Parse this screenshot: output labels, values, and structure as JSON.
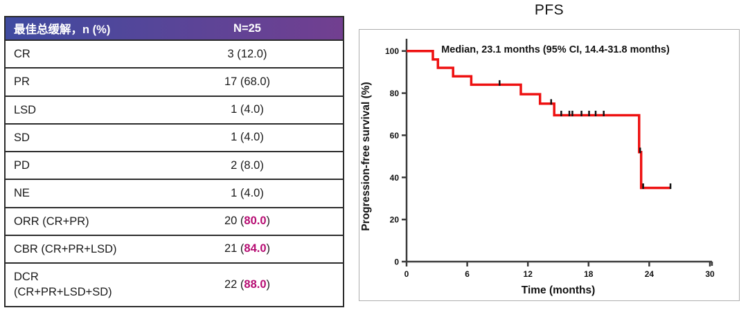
{
  "table": {
    "header": {
      "label": "最佳总缓解，n (%)",
      "value": "N=25"
    },
    "rows": [
      {
        "label": "CR",
        "n": "3",
        "pct": "12.0",
        "highlight": false
      },
      {
        "label": "PR",
        "n": "17",
        "pct": "68.0",
        "highlight": false
      },
      {
        "label": "LSD",
        "n": "1",
        "pct": "4.0",
        "highlight": false
      },
      {
        "label": "SD",
        "n": "1",
        "pct": "4.0",
        "highlight": false
      },
      {
        "label": "PD",
        "n": "2",
        "pct": "8.0",
        "highlight": false
      },
      {
        "label": "NE",
        "n": "1",
        "pct": "4.0",
        "highlight": false
      },
      {
        "label": "ORR (CR+PR)",
        "n": "20",
        "pct": "80.0",
        "highlight": true
      },
      {
        "label": "CBR (CR+PR+LSD)",
        "n": "21",
        "pct": "84.0",
        "highlight": true
      },
      {
        "label": "DCR\n(CR+PR+LSD+SD)",
        "n": "22",
        "pct": "88.0",
        "highlight": true
      }
    ],
    "colors": {
      "header_gradient_left": "#3f4ba0",
      "header_gradient_right": "#723f90",
      "highlight": "#b60c72",
      "border": "#2b2b2b",
      "text": "#1a1a1a"
    }
  },
  "chart_data": {
    "type": "line",
    "subtype": "kaplan-meier-step",
    "title": "PFS",
    "annotation": "Median, 23.1 months (95% CI, 14.4-31.8 months)",
    "xlabel": "Time (months)",
    "ylabel": "Progression-free survival (%)",
    "x_ticks": [
      0,
      6,
      12,
      18,
      24,
      30
    ],
    "y_ticks": [
      0,
      20,
      40,
      60,
      80,
      100
    ],
    "xlim": [
      0,
      30
    ],
    "ylim": [
      0,
      100
    ],
    "grid": false,
    "legend": false,
    "series": [
      {
        "name": "PFS",
        "color": "#ee1111",
        "step_points": [
          [
            0,
            100
          ],
          [
            2.6,
            100
          ],
          [
            2.6,
            96
          ],
          [
            3.1,
            96
          ],
          [
            3.1,
            92
          ],
          [
            4.6,
            92
          ],
          [
            4.6,
            88
          ],
          [
            6.4,
            88
          ],
          [
            6.4,
            84
          ],
          [
            11.3,
            84
          ],
          [
            11.3,
            79.5
          ],
          [
            13.2,
            79.5
          ],
          [
            13.2,
            75
          ],
          [
            14.6,
            75
          ],
          [
            14.6,
            69.5
          ],
          [
            23.0,
            69.5
          ],
          [
            23.0,
            52
          ],
          [
            23.2,
            52
          ],
          [
            23.2,
            35
          ],
          [
            26.1,
            35
          ]
        ]
      }
    ],
    "censor_marks": [
      [
        9.2,
        84
      ],
      [
        14.3,
        75
      ],
      [
        15.3,
        69.5
      ],
      [
        16.1,
        69.5
      ],
      [
        16.4,
        69.5
      ],
      [
        17.3,
        69.5
      ],
      [
        18.05,
        69.5
      ],
      [
        18.7,
        69.5
      ],
      [
        19.5,
        69.5
      ],
      [
        23.1,
        52
      ],
      [
        23.4,
        35
      ],
      [
        26.1,
        35
      ]
    ],
    "colors": {
      "curve": "#ee1111",
      "censor": "#111111",
      "axis": "#3a3a3a",
      "frame": "#adadad",
      "text": "#111111"
    }
  }
}
